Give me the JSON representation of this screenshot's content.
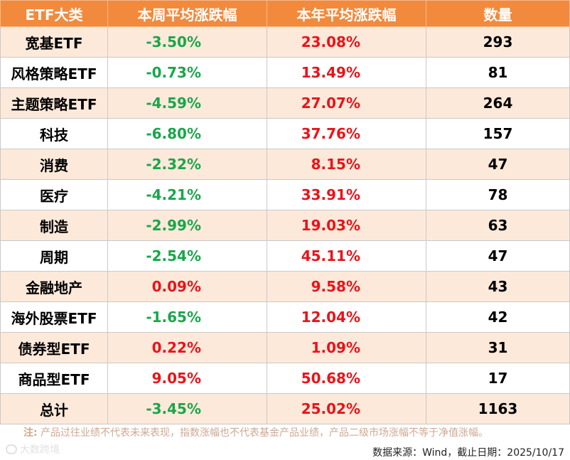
{
  "table": {
    "headers": [
      "ETF大类",
      "本周平均涨跌幅",
      "本年平均涨跌幅",
      "数量"
    ],
    "rows": [
      {
        "category": "宽基ETF",
        "week": "-3.50%",
        "year": "23.08%",
        "count": "293"
      },
      {
        "category": "风格策略ETF",
        "week": "-0.73%",
        "year": "13.49%",
        "count": "81"
      },
      {
        "category": "主题策略ETF",
        "week": "-4.59%",
        "year": "27.07%",
        "count": "264"
      },
      {
        "category": "科技",
        "week": "-6.80%",
        "year": "37.76%",
        "count": "157"
      },
      {
        "category": "消费",
        "week": "-2.32%",
        "year": "8.15%",
        "count": "47"
      },
      {
        "category": "医疗",
        "week": "-4.21%",
        "year": "33.91%",
        "count": "78"
      },
      {
        "category": "制造",
        "week": "-2.99%",
        "year": "19.03%",
        "count": "63"
      },
      {
        "category": "周期",
        "week": "-2.54%",
        "year": "45.11%",
        "count": "47"
      },
      {
        "category": "金融地产",
        "week": "0.09%",
        "year": "9.58%",
        "count": "43"
      },
      {
        "category": "海外股票ETF",
        "week": "-1.65%",
        "year": "12.04%",
        "count": "42"
      },
      {
        "category": "债券型ETF",
        "week": "0.22%",
        "year": "1.09%",
        "count": "31"
      },
      {
        "category": "商品型ETF",
        "week": "9.05%",
        "year": "50.68%",
        "count": "17"
      },
      {
        "category": "总计",
        "week": "-3.45%",
        "year": "25.02%",
        "count": "1163"
      }
    ]
  },
  "footer": {
    "note_label": "注:",
    "note_text": "产品过往业绩不代表未来表现，指数涨幅也不代表基金产品业绩，产品二级市场涨幅不等于净值涨幅。",
    "source": "数据来源：Wind，截止日期：2025/10/17",
    "watermark": "大数跨境"
  },
  "colors": {
    "header_bg": "#f28a3d",
    "row_alt_bg": "#fde9da",
    "negative": "#1aa64a",
    "positive": "#e8141a"
  }
}
